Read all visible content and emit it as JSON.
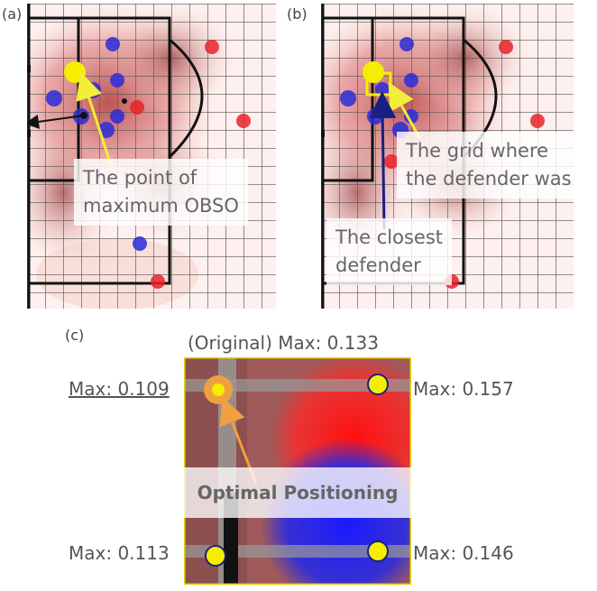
{
  "panels": {
    "a": {
      "tag": "(a)",
      "note_line1": "The point of",
      "note_line2": "maximum OBSO"
    },
    "b": {
      "tag": "(b)",
      "note1_line1": "The grid where",
      "note1_line2": "the defender was",
      "note2_line1": "The closest",
      "note2_line2": "defender"
    },
    "c": {
      "tag": "(c)",
      "title": "(Original) Max: 0.133",
      "top_left": "Max: 0.109",
      "top_right": "Max: 0.157",
      "bottom_left": "Max: 0.113",
      "bottom_right": "Max: 0.146",
      "center_label": "Optimal Positioning"
    }
  },
  "colors": {
    "attacker": "#e8232a",
    "defender": "#2b2bd9",
    "highlight": "#f5ee00",
    "optimal_ring": "#f0a040",
    "arrow_yellow": "#f2ee3a",
    "arrow_navy": "#1a1f80",
    "arrow_orange": "#f0a040",
    "panel_c_border": "#e6d300"
  },
  "icons": [
    "yellow-point-icon",
    "grid-cell-highlight-icon",
    "arrow-icon"
  ]
}
